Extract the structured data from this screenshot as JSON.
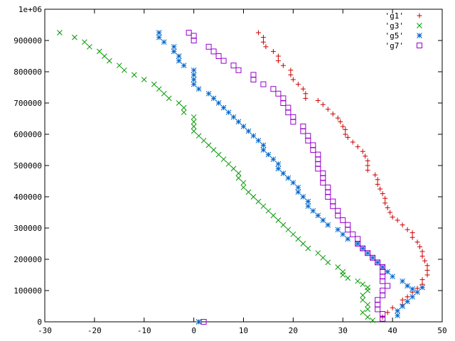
{
  "chart_data": {
    "type": "scatter",
    "title": "",
    "xlabel": "",
    "ylabel": "",
    "xlim": [
      -30,
      50
    ],
    "ylim": [
      0,
      1000000
    ],
    "grid": false,
    "legend_position": "top-right",
    "x_ticks": [
      {
        "value": -30,
        "label": "-30"
      },
      {
        "value": -20,
        "label": "-20"
      },
      {
        "value": -10,
        "label": "-10"
      },
      {
        "value": 0,
        "label": "0"
      },
      {
        "value": 10,
        "label": "10"
      },
      {
        "value": 20,
        "label": "20"
      },
      {
        "value": 30,
        "label": "30"
      },
      {
        "value": 40,
        "label": "40"
      },
      {
        "value": 50,
        "label": "50"
      }
    ],
    "y_ticks": [
      {
        "value": 0,
        "label": "0"
      },
      {
        "value": 100000,
        "label": "100000"
      },
      {
        "value": 200000,
        "label": "200000"
      },
      {
        "value": 300000,
        "label": "300000"
      },
      {
        "value": 400000,
        "label": "400000"
      },
      {
        "value": 500000,
        "label": "500000"
      },
      {
        "value": 600000,
        "label": "600000"
      },
      {
        "value": 700000,
        "label": "700000"
      },
      {
        "value": 800000,
        "label": "800000"
      },
      {
        "value": 900000,
        "label": "900000"
      },
      {
        "value": 1000000,
        "label": "1e+06"
      }
    ],
    "series": [
      {
        "name": "'g1'",
        "color": "#cc0000",
        "marker": "plus",
        "points": [
          [
            13,
            925000
          ],
          [
            14,
            910000
          ],
          [
            14,
            895000
          ],
          [
            14.5,
            880000
          ],
          [
            16,
            865000
          ],
          [
            17,
            850000
          ],
          [
            17,
            835000
          ],
          [
            18,
            820000
          ],
          [
            19.5,
            805000
          ],
          [
            19.5,
            790000
          ],
          [
            20,
            775000
          ],
          [
            21,
            760000
          ],
          [
            22,
            745000
          ],
          [
            22.5,
            730000
          ],
          [
            22.5,
            715000
          ],
          [
            25,
            708000
          ],
          [
            26,
            695000
          ],
          [
            27,
            680000
          ],
          [
            28,
            665000
          ],
          [
            29,
            652000
          ],
          [
            29.5,
            640000
          ],
          [
            30,
            625000
          ],
          [
            30.5,
            615000
          ],
          [
            30.5,
            600000
          ],
          [
            31,
            590000
          ],
          [
            32,
            575000
          ],
          [
            33,
            560000
          ],
          [
            34,
            545000
          ],
          [
            34.5,
            530000
          ],
          [
            35,
            515000
          ],
          [
            35,
            500000
          ],
          [
            35,
            485000
          ],
          [
            36.5,
            470000
          ],
          [
            37,
            455000
          ],
          [
            37,
            440000
          ],
          [
            37.5,
            425000
          ],
          [
            38,
            410000
          ],
          [
            38.5,
            395000
          ],
          [
            38.5,
            380000
          ],
          [
            39,
            365000
          ],
          [
            39.5,
            350000
          ],
          [
            40,
            335000
          ],
          [
            41,
            325000
          ],
          [
            42,
            310000
          ],
          [
            43,
            295000
          ],
          [
            44,
            285000
          ],
          [
            44,
            270000
          ],
          [
            45,
            255000
          ],
          [
            45.5,
            240000
          ],
          [
            46,
            225000
          ],
          [
            46,
            210000
          ],
          [
            46.5,
            195000
          ],
          [
            47,
            180000
          ],
          [
            47,
            165000
          ],
          [
            47,
            150000
          ],
          [
            46,
            135000
          ],
          [
            46,
            120000
          ],
          [
            45,
            107000
          ],
          [
            44,
            95000
          ],
          [
            43,
            80000
          ],
          [
            42,
            70000
          ],
          [
            42,
            55000
          ],
          [
            40,
            45000
          ],
          [
            39,
            30000
          ],
          [
            38,
            15000
          ],
          [
            1,
            0
          ]
        ]
      },
      {
        "name": "'g3'",
        "color": "#009900",
        "marker": "cross",
        "points": [
          [
            -27,
            925000
          ],
          [
            -24,
            910000
          ],
          [
            -22,
            895000
          ],
          [
            -21,
            880000
          ],
          [
            -19,
            865000
          ],
          [
            -18,
            850000
          ],
          [
            -17,
            835000
          ],
          [
            -15,
            820000
          ],
          [
            -14,
            805000
          ],
          [
            -12,
            790000
          ],
          [
            -10,
            775000
          ],
          [
            -8,
            760000
          ],
          [
            -7,
            745000
          ],
          [
            -6,
            730000
          ],
          [
            -5,
            715000
          ],
          [
            -3,
            700000
          ],
          [
            -2,
            685000
          ],
          [
            -2,
            670000
          ],
          [
            0,
            655000
          ],
          [
            0,
            640000
          ],
          [
            0,
            625000
          ],
          [
            0,
            610000
          ],
          [
            1,
            595000
          ],
          [
            2,
            580000
          ],
          [
            3,
            565000
          ],
          [
            4,
            550000
          ],
          [
            5,
            535000
          ],
          [
            6,
            520000
          ],
          [
            7,
            505000
          ],
          [
            8,
            490000
          ],
          [
            9,
            475000
          ],
          [
            9,
            460000
          ],
          [
            10,
            445000
          ],
          [
            10,
            430000
          ],
          [
            11,
            415000
          ],
          [
            12,
            400000
          ],
          [
            13,
            385000
          ],
          [
            14,
            370000
          ],
          [
            15,
            355000
          ],
          [
            16,
            340000
          ],
          [
            17,
            325000
          ],
          [
            18,
            310000
          ],
          [
            19,
            295000
          ],
          [
            20,
            280000
          ],
          [
            21,
            265000
          ],
          [
            22,
            250000
          ],
          [
            23,
            235000
          ],
          [
            25,
            220000
          ],
          [
            26,
            205000
          ],
          [
            27,
            190000
          ],
          [
            29,
            175000
          ],
          [
            30,
            160000
          ],
          [
            30,
            150000
          ],
          [
            31,
            140000
          ],
          [
            33,
            130000
          ],
          [
            34,
            120000
          ],
          [
            35,
            110000
          ],
          [
            35,
            100000
          ],
          [
            34,
            85000
          ],
          [
            34,
            70000
          ],
          [
            35,
            55000
          ],
          [
            35,
            40000
          ],
          [
            34,
            30000
          ],
          [
            35,
            15000
          ],
          [
            36,
            5000
          ],
          [
            1,
            0
          ]
        ]
      },
      {
        "name": "'g5'",
        "color": "#0066cc",
        "marker": "star",
        "points": [
          [
            -7,
            925000
          ],
          [
            -7,
            910000
          ],
          [
            -6,
            895000
          ],
          [
            -4,
            880000
          ],
          [
            -4,
            865000
          ],
          [
            -3,
            850000
          ],
          [
            -3,
            835000
          ],
          [
            -2,
            820000
          ],
          [
            0,
            805000
          ],
          [
            0,
            790000
          ],
          [
            0,
            775000
          ],
          [
            0,
            760000
          ],
          [
            1,
            745000
          ],
          [
            3,
            730000
          ],
          [
            4,
            715000
          ],
          [
            5,
            700000
          ],
          [
            6,
            685000
          ],
          [
            7,
            670000
          ],
          [
            8,
            655000
          ],
          [
            9,
            640000
          ],
          [
            10,
            625000
          ],
          [
            11,
            610000
          ],
          [
            12,
            595000
          ],
          [
            13,
            580000
          ],
          [
            14,
            565000
          ],
          [
            14,
            550000
          ],
          [
            15,
            535000
          ],
          [
            16,
            520000
          ],
          [
            17,
            505000
          ],
          [
            17,
            490000
          ],
          [
            18,
            475000
          ],
          [
            19,
            460000
          ],
          [
            20,
            445000
          ],
          [
            21,
            430000
          ],
          [
            21,
            415000
          ],
          [
            22,
            400000
          ],
          [
            23,
            385000
          ],
          [
            23,
            370000
          ],
          [
            24,
            355000
          ],
          [
            25,
            340000
          ],
          [
            26,
            325000
          ],
          [
            27,
            310000
          ],
          [
            29,
            295000
          ],
          [
            30,
            280000
          ],
          [
            31,
            265000
          ],
          [
            33,
            250000
          ],
          [
            34,
            235000
          ],
          [
            35,
            220000
          ],
          [
            36,
            205000
          ],
          [
            37,
            190000
          ],
          [
            38,
            175000
          ],
          [
            39,
            160000
          ],
          [
            40,
            145000
          ],
          [
            42,
            130000
          ],
          [
            43,
            115000
          ],
          [
            44,
            105000
          ],
          [
            45,
            95000
          ],
          [
            46,
            110000
          ],
          [
            44,
            80000
          ],
          [
            43,
            65000
          ],
          [
            42,
            50000
          ],
          [
            41,
            35000
          ],
          [
            41,
            20000
          ],
          [
            1,
            0
          ]
        ]
      },
      {
        "name": "'g7'",
        "color": "#9900cc",
        "marker": "square",
        "points": [
          [
            -1,
            925000
          ],
          [
            0,
            915000
          ],
          [
            0,
            900000
          ],
          [
            3,
            880000
          ],
          [
            4,
            865000
          ],
          [
            5,
            850000
          ],
          [
            6,
            835000
          ],
          [
            8,
            820000
          ],
          [
            9,
            805000
          ],
          [
            12,
            790000
          ],
          [
            12,
            775000
          ],
          [
            14,
            760000
          ],
          [
            16,
            745000
          ],
          [
            17,
            730000
          ],
          [
            18,
            715000
          ],
          [
            18,
            700000
          ],
          [
            19,
            685000
          ],
          [
            19,
            670000
          ],
          [
            20,
            655000
          ],
          [
            20,
            640000
          ],
          [
            22,
            625000
          ],
          [
            22,
            610000
          ],
          [
            23,
            595000
          ],
          [
            23,
            580000
          ],
          [
            24,
            565000
          ],
          [
            24,
            550000
          ],
          [
            25,
            535000
          ],
          [
            25,
            520000
          ],
          [
            25,
            505000
          ],
          [
            25,
            490000
          ],
          [
            26,
            475000
          ],
          [
            26,
            460000
          ],
          [
            26,
            445000
          ],
          [
            27,
            430000
          ],
          [
            27,
            415000
          ],
          [
            27,
            400000
          ],
          [
            28,
            385000
          ],
          [
            28,
            370000
          ],
          [
            29,
            355000
          ],
          [
            29,
            340000
          ],
          [
            30,
            325000
          ],
          [
            31,
            310000
          ],
          [
            31,
            295000
          ],
          [
            32,
            280000
          ],
          [
            33,
            265000
          ],
          [
            33,
            250000
          ],
          [
            34,
            235000
          ],
          [
            35,
            220000
          ],
          [
            36,
            205000
          ],
          [
            37,
            190000
          ],
          [
            38,
            175000
          ],
          [
            38,
            160000
          ],
          [
            38,
            145000
          ],
          [
            38,
            130000
          ],
          [
            39,
            115000
          ],
          [
            38,
            100000
          ],
          [
            38,
            85000
          ],
          [
            37,
            70000
          ],
          [
            37,
            55000
          ],
          [
            37,
            40000
          ],
          [
            38,
            25000
          ],
          [
            38,
            10000
          ],
          [
            2,
            0
          ]
        ]
      }
    ]
  }
}
